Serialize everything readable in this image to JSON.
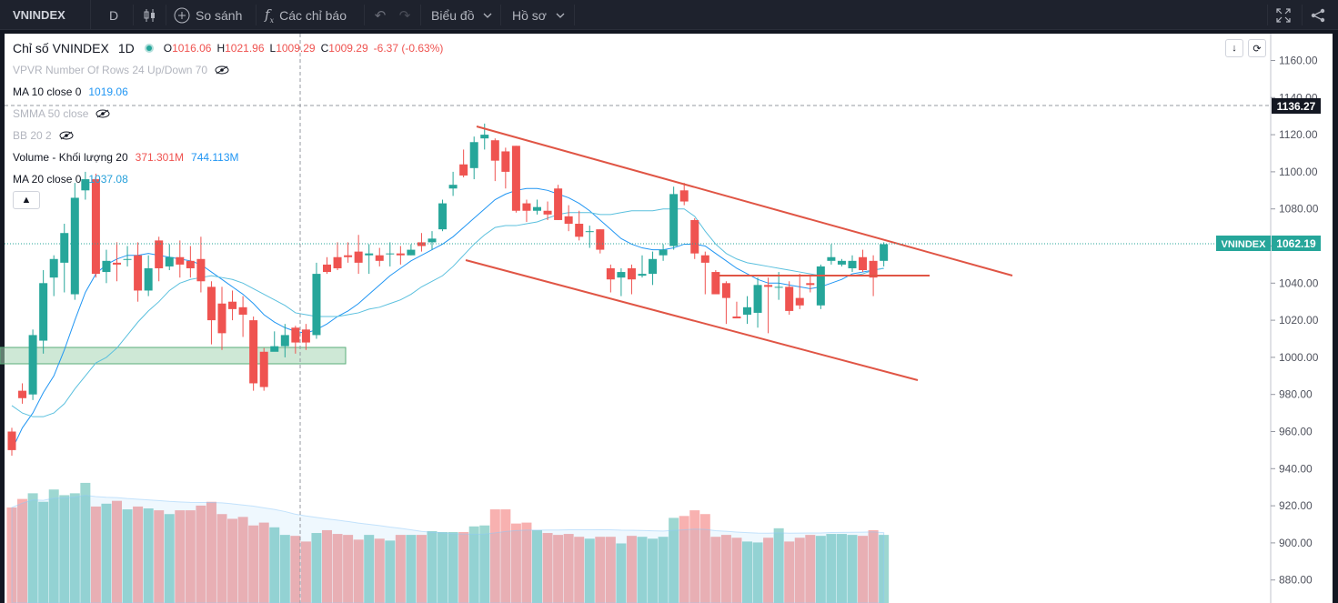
{
  "toolbar": {
    "symbol": "VNINDEX",
    "interval": "D",
    "compare_label": "So sánh",
    "indicators_label": "Các chỉ báo",
    "chart_type_label": "Biểu đồ",
    "profile_label": "Hồ sơ"
  },
  "legend": {
    "title": "Chỉ số VNINDEX",
    "interval": "1D",
    "open_label": "O",
    "open": "1016.06",
    "high_label": "H",
    "high": "1021.96",
    "low_label": "L",
    "low": "1009.29",
    "close_label": "C",
    "close": "1009.29",
    "change": "-6.37 (-0.63%)",
    "vpvr": "VPVR Number Of Rows 24 Up/Down 70",
    "ma10_label": "MA 10 close 0",
    "ma10_value": "1019.06",
    "smma50_label": "SMMA 50 close",
    "bb_label": "BB 20 2",
    "volume_label": "Volume - Khối lượng 20",
    "volume_value1": "371.301M",
    "volume_value2": "744.113M",
    "ma20_label": "MA 20 close 0",
    "ma20_value": "1037.08"
  },
  "price_axis": {
    "ticks": [
      "1160.00",
      "1140.00",
      "1120.00",
      "1100.00",
      "1080.00",
      "1060.00",
      "1040.00",
      "1020.00",
      "1000.00",
      "980.00",
      "960.00",
      "940.00",
      "920.00",
      "900.00",
      "880.00"
    ],
    "crosshair_label": "1136.27",
    "last_symbol": "VNINDEX",
    "last_price": "1062.19"
  },
  "colors": {
    "up": "#26a69a",
    "down": "#ef5350",
    "ma_line": "#2196f3",
    "ma20_line": "#5bc0de",
    "trend": "#e05545",
    "zone_fill": "#a5d6b5",
    "grid_bg": "#ffffff",
    "toolbar_bg": "#1e222d"
  },
  "chart_data": {
    "type": "candlestick",
    "ylim": [
      870,
      1170
    ],
    "candles": [
      [
        960,
        950,
        962,
        947
      ],
      [
        982,
        978,
        986,
        975
      ],
      [
        980,
        1012,
        1015,
        977
      ],
      [
        1009,
        1040,
        1047,
        1002
      ],
      [
        1043,
        1053,
        1055,
        1033
      ],
      [
        1051,
        1067,
        1072,
        1035
      ],
      [
        1034,
        1086,
        1094,
        1031
      ],
      [
        1090,
        1096,
        1100,
        1085
      ],
      [
        1096,
        1045,
        1099,
        1043
      ],
      [
        1046,
        1052,
        1058,
        1040
      ],
      [
        1051,
        1050,
        1062,
        1041
      ],
      [
        1053,
        1053,
        1060,
        1049
      ],
      [
        1055,
        1036,
        1062,
        1030
      ],
      [
        1036,
        1048,
        1055,
        1033
      ],
      [
        1063,
        1048,
        1065,
        1041
      ],
      [
        1049,
        1054,
        1061,
        1047
      ],
      [
        1054,
        1050,
        1063,
        1043
      ],
      [
        1052,
        1048,
        1060,
        1043
      ],
      [
        1053,
        1041,
        1065,
        1035
      ],
      [
        1038,
        1020,
        1041,
        1007
      ],
      [
        1029,
        1013,
        1038,
        1004
      ],
      [
        1030,
        1026,
        1036,
        1020
      ],
      [
        1027,
        1023,
        1033,
        1011
      ],
      [
        1020,
        986,
        1022,
        982
      ],
      [
        1003,
        984,
        1005,
        982
      ],
      [
        1003,
        1006,
        1014,
        1004
      ],
      [
        1006,
        1012,
        1018,
        1000
      ],
      [
        1016,
        1008,
        1017,
        1002
      ],
      [
        1015,
        1008,
        1018,
        1004
      ],
      [
        1012,
        1045,
        1051,
        1010
      ],
      [
        1050,
        1046,
        1054,
        1045
      ],
      [
        1054,
        1048,
        1062,
        1047
      ],
      [
        1055,
        1054,
        1062,
        1051
      ],
      [
        1057,
        1051,
        1066,
        1045
      ],
      [
        1055,
        1056,
        1061,
        1045
      ],
      [
        1055,
        1052,
        1059,
        1049
      ],
      [
        1056,
        1056,
        1062,
        1049
      ],
      [
        1056,
        1055,
        1060,
        1050
      ],
      [
        1055,
        1058,
        1061,
        1055
      ],
      [
        1062,
        1060,
        1067,
        1057
      ],
      [
        1062,
        1064,
        1068,
        1058
      ],
      [
        1069,
        1083,
        1085,
        1068
      ],
      [
        1091,
        1093,
        1100,
        1087
      ],
      [
        1104,
        1098,
        1112,
        1097
      ],
      [
        1102,
        1116,
        1119,
        1096
      ],
      [
        1118,
        1120,
        1126,
        1112
      ],
      [
        1117,
        1106,
        1118,
        1095
      ],
      [
        1111,
        1100,
        1113,
        1091
      ],
      [
        1114,
        1079,
        1114,
        1078
      ],
      [
        1083,
        1079,
        1085,
        1073
      ],
      [
        1079,
        1081,
        1085,
        1077
      ],
      [
        1079,
        1077,
        1084,
        1074
      ],
      [
        1091,
        1074,
        1093,
        1074
      ],
      [
        1076,
        1072,
        1082,
        1068
      ],
      [
        1072,
        1065,
        1079,
        1063
      ],
      [
        1068,
        1068,
        1071,
        1059
      ],
      [
        1069,
        1058,
        1069,
        1056
      ],
      [
        1048,
        1042,
        1050,
        1035
      ],
      [
        1043,
        1046,
        1048,
        1033
      ],
      [
        1048,
        1042,
        1050,
        1034
      ],
      [
        1044,
        1045,
        1055,
        1043
      ],
      [
        1045,
        1053,
        1057,
        1039
      ],
      [
        1055,
        1058,
        1061,
        1052
      ],
      [
        1060,
        1088,
        1092,
        1058
      ],
      [
        1090,
        1084,
        1094,
        1082
      ],
      [
        1074,
        1056,
        1075,
        1053
      ],
      [
        1055,
        1051,
        1057,
        1034
      ],
      [
        1046,
        1034,
        1047,
        1036
      ],
      [
        1040,
        1032,
        1041,
        1018
      ],
      [
        1022,
        1021,
        1030,
        1021
      ],
      [
        1023,
        1027,
        1033,
        1018
      ],
      [
        1024,
        1039,
        1043,
        1016
      ],
      [
        1039,
        1038,
        1043,
        1013
      ],
      [
        1038,
        1038,
        1046,
        1031
      ],
      [
        1038,
        1025,
        1041,
        1023
      ],
      [
        1032,
        1028,
        1045,
        1026
      ],
      [
        1040,
        1039,
        1044,
        1035
      ],
      [
        1028,
        1049,
        1050,
        1026
      ],
      [
        1052,
        1054,
        1061,
        1050
      ],
      [
        1050,
        1052,
        1053,
        1049
      ],
      [
        1048,
        1052,
        1055,
        1046
      ],
      [
        1054,
        1047,
        1058,
        1046
      ],
      [
        1052,
        1043,
        1055,
        1033
      ],
      [
        1052,
        1061,
        1062,
        1049
      ]
    ],
    "ma_fast": [
      950,
      962,
      970,
      981,
      990,
      1004,
      1020,
      1035,
      1045,
      1050,
      1053,
      1055,
      1055,
      1056,
      1055,
      1054,
      1053,
      1052,
      1050,
      1046,
      1042,
      1038,
      1034,
      1029,
      1023,
      1019,
      1016,
      1014,
      1013,
      1015,
      1018,
      1022,
      1025,
      1029,
      1034,
      1039,
      1044,
      1048,
      1052,
      1055,
      1058,
      1061,
      1065,
      1070,
      1075,
      1080,
      1085,
      1088,
      1090,
      1091,
      1091,
      1090,
      1088,
      1086,
      1083,
      1079,
      1074,
      1069,
      1064,
      1061,
      1059,
      1058,
      1058,
      1059,
      1061,
      1061,
      1060,
      1056,
      1052,
      1048,
      1045,
      1042,
      1040,
      1040,
      1039,
      1038,
      1037,
      1038,
      1040,
      1042,
      1045,
      1046,
      1047,
      1048
    ],
    "ma_slow": [
      974,
      970,
      968,
      968,
      970,
      975,
      983,
      990,
      997,
      1000,
      1005,
      1012,
      1019,
      1025,
      1030,
      1036,
      1040,
      1042,
      1043,
      1044,
      1043,
      1042,
      1040,
      1037,
      1034,
      1031,
      1028,
      1024,
      1023,
      1022,
      1022,
      1022,
      1023,
      1024,
      1026,
      1027,
      1029,
      1031,
      1034,
      1038,
      1041,
      1044,
      1049,
      1055,
      1061,
      1066,
      1070,
      1071,
      1071,
      1072,
      1073,
      1075,
      1077,
      1078,
      1078,
      1078,
      1077,
      1077,
      1078,
      1079,
      1079,
      1079,
      1080,
      1080,
      1080,
      1076,
      1068,
      1061,
      1056,
      1053,
      1051,
      1050,
      1049,
      1048,
      1047,
      1046,
      1045,
      1044,
      1044,
      1044,
      1044,
      1045,
      1047,
      1048
    ],
    "volumes": [
      101,
      110,
      116,
      107,
      120,
      114,
      116,
      127,
      102,
      105,
      108,
      99,
      102,
      100,
      98,
      94,
      98,
      98,
      103,
      107,
      94,
      89,
      91,
      82,
      85,
      80,
      72,
      71,
      65,
      74,
      77,
      73,
      72,
      67,
      72,
      68,
      66,
      72,
      72,
      72,
      76,
      75,
      75,
      75,
      81,
      82,
      99,
      99,
      84,
      85,
      77,
      74,
      72,
      73,
      70,
      68,
      70,
      70,
      63,
      71,
      70,
      68,
      70,
      90,
      92,
      98,
      94,
      70,
      72,
      69,
      65,
      64,
      69,
      79,
      65,
      69,
      72,
      71,
      73,
      73,
      72,
      71,
      77,
      72
    ]
  }
}
